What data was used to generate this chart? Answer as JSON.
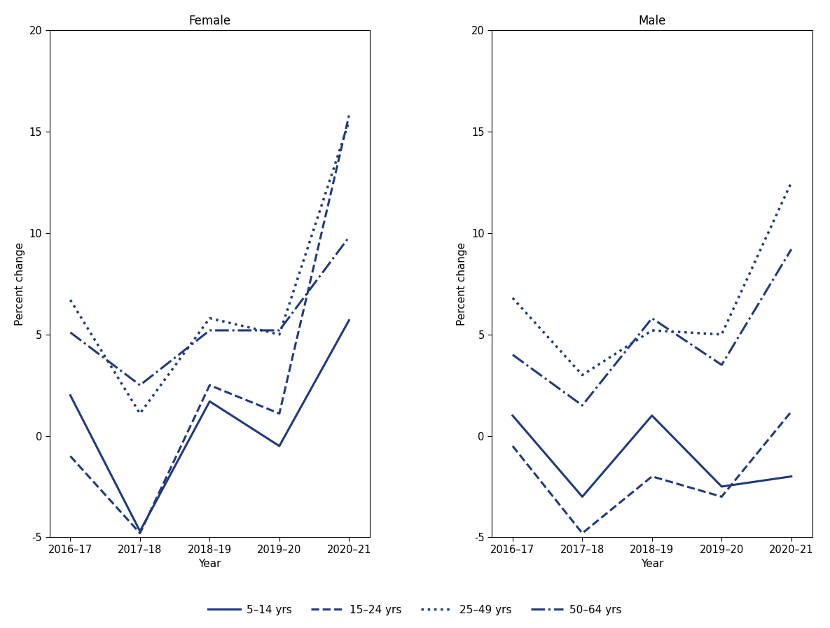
{
  "x_labels": [
    "2016–17",
    "2017–18",
    "2018–19",
    "2019–20",
    "2020–21"
  ],
  "x_positions": [
    0,
    1,
    2,
    3,
    4
  ],
  "female": {
    "age_5_14": [
      2.0,
      -4.7,
      1.7,
      -0.5,
      5.7
    ],
    "age_15_24": [
      -1.0,
      -4.8,
      2.5,
      1.1,
      15.8
    ],
    "age_25_49": [
      6.7,
      1.1,
      5.8,
      5.0,
      15.5
    ],
    "age_50_64": [
      5.1,
      2.5,
      5.2,
      5.2,
      9.8
    ]
  },
  "male": {
    "age_5_14": [
      1.0,
      -3.0,
      1.0,
      -2.5,
      -2.0
    ],
    "age_15_24": [
      -0.5,
      -4.8,
      -2.0,
      -3.0,
      1.2
    ],
    "age_25_49": [
      6.8,
      3.0,
      5.2,
      5.0,
      12.5
    ],
    "age_50_64": [
      4.0,
      1.5,
      5.8,
      3.5,
      9.2
    ]
  },
  "color": "#1F3A7D",
  "ylim": [
    -5,
    20
  ],
  "yticks": [
    -5,
    0,
    5,
    10,
    15,
    20
  ],
  "title_female": "Female",
  "title_male": "Male",
  "xlabel": "Year",
  "ylabel": "Percent change",
  "legend_labels": [
    "5–14 yrs",
    "15–24 yrs",
    "25–49 yrs",
    "50–64 yrs"
  ],
  "fig_facecolor": "#ffffff",
  "ax_facecolor": "#ffffff"
}
